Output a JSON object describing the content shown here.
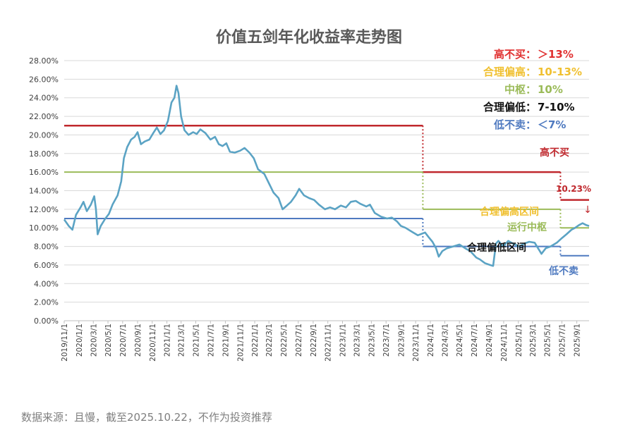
{
  "chart_data": {
    "type": "line",
    "title": "价值五剑年化收益率走势图",
    "ylim": [
      0,
      28
    ],
    "yticks": [
      "0.00%",
      "2.00%",
      "4.00%",
      "6.00%",
      "8.00%",
      "10.00%",
      "12.00%",
      "14.00%",
      "16.00%",
      "18.00%",
      "20.00%",
      "22.00%",
      "24.00%",
      "26.00%",
      "28.00%"
    ],
    "x_range": [
      "2019-11-01",
      "2025-10-22"
    ],
    "xticks": [
      "2019/11/1",
      "2020/1/1",
      "2020/3/1",
      "2020/5/1",
      "2020/7/1",
      "2020/9/1",
      "2020/11/1",
      "2021/1/1",
      "2021/3/1",
      "2021/5/1",
      "2021/7/1",
      "2021/9/1",
      "2021/11/1",
      "2022/1/1",
      "2022/3/1",
      "2022/5/1",
      "2022/7/1",
      "2022/9/1",
      "2022/11/1",
      "2023/1/1",
      "2023/3/1",
      "2023/5/1",
      "2023/7/1",
      "2023/9/1",
      "2023/11/1",
      "2024/1/1",
      "2024/3/1",
      "2024/5/1",
      "2024/7/1",
      "2024/9/1",
      "2024/11/1",
      "2025/1/1",
      "2025/3/1",
      "2025/5/1",
      "2025/7/1",
      "2025/9/1"
    ],
    "series": [
      {
        "color": "#5ba3c4",
        "points": [
          [
            "2019-11-01",
            10.9
          ],
          [
            "2019-11-20",
            10.2
          ],
          [
            "2019-12-05",
            9.8
          ],
          [
            "2019-12-20",
            11.4
          ],
          [
            "2020-01-10",
            12.3
          ],
          [
            "2020-01-20",
            12.8
          ],
          [
            "2020-02-03",
            11.8
          ],
          [
            "2020-02-20",
            12.5
          ],
          [
            "2020-03-05",
            13.4
          ],
          [
            "2020-03-12",
            12.0
          ],
          [
            "2020-03-19",
            9.3
          ],
          [
            "2020-04-01",
            10.2
          ],
          [
            "2020-04-20",
            11.0
          ],
          [
            "2020-05-05",
            11.5
          ],
          [
            "2020-05-20",
            12.5
          ],
          [
            "2020-06-10",
            13.5
          ],
          [
            "2020-06-25",
            15.0
          ],
          [
            "2020-07-06",
            17.5
          ],
          [
            "2020-07-20",
            18.7
          ],
          [
            "2020-08-05",
            19.5
          ],
          [
            "2020-08-20",
            19.8
          ],
          [
            "2020-09-01",
            20.3
          ],
          [
            "2020-09-15",
            19.0
          ],
          [
            "2020-10-01",
            19.3
          ],
          [
            "2020-10-20",
            19.5
          ],
          [
            "2020-11-05",
            20.2
          ],
          [
            "2020-11-20",
            20.8
          ],
          [
            "2020-12-05",
            20.1
          ],
          [
            "2020-12-20",
            20.5
          ],
          [
            "2021-01-05",
            21.5
          ],
          [
            "2021-01-20",
            23.5
          ],
          [
            "2021-02-01",
            24.0
          ],
          [
            "2021-02-10",
            25.3
          ],
          [
            "2021-02-18",
            24.5
          ],
          [
            "2021-03-01",
            22.0
          ],
          [
            "2021-03-15",
            20.5
          ],
          [
            "2021-04-01",
            20.0
          ],
          [
            "2021-04-20",
            20.3
          ],
          [
            "2021-05-05",
            20.1
          ],
          [
            "2021-05-20",
            20.6
          ],
          [
            "2021-06-10",
            20.2
          ],
          [
            "2021-07-01",
            19.5
          ],
          [
            "2021-07-20",
            19.8
          ],
          [
            "2021-08-05",
            19.0
          ],
          [
            "2021-08-20",
            18.8
          ],
          [
            "2021-09-05",
            19.1
          ],
          [
            "2021-09-20",
            18.2
          ],
          [
            "2021-10-10",
            18.1
          ],
          [
            "2021-11-01",
            18.3
          ],
          [
            "2021-11-20",
            18.6
          ],
          [
            "2021-12-10",
            18.1
          ],
          [
            "2021-12-28",
            17.5
          ],
          [
            "2022-01-15",
            16.3
          ],
          [
            "2022-02-10",
            15.8
          ],
          [
            "2022-03-01",
            14.8
          ],
          [
            "2022-03-20",
            13.8
          ],
          [
            "2022-04-10",
            13.2
          ],
          [
            "2022-04-27",
            12.0
          ],
          [
            "2022-05-15",
            12.4
          ],
          [
            "2022-06-01",
            12.8
          ],
          [
            "2022-06-20",
            13.5
          ],
          [
            "2022-07-05",
            14.2
          ],
          [
            "2022-07-25",
            13.5
          ],
          [
            "2022-08-15",
            13.2
          ],
          [
            "2022-09-05",
            13.0
          ],
          [
            "2022-09-25",
            12.5
          ],
          [
            "2022-10-20",
            12.0
          ],
          [
            "2022-11-10",
            12.2
          ],
          [
            "2022-12-01",
            12.0
          ],
          [
            "2022-12-25",
            12.4
          ],
          [
            "2023-01-15",
            12.2
          ],
          [
            "2023-02-05",
            12.8
          ],
          [
            "2023-02-25",
            12.9
          ],
          [
            "2023-03-15",
            12.6
          ],
          [
            "2023-04-10",
            12.3
          ],
          [
            "2023-04-25",
            12.5
          ],
          [
            "2023-05-15",
            11.6
          ],
          [
            "2023-06-10",
            11.2
          ],
          [
            "2023-07-05",
            11.0
          ],
          [
            "2023-07-25",
            11.1
          ],
          [
            "2023-08-15",
            10.7
          ],
          [
            "2023-09-01",
            10.2
          ],
          [
            "2023-09-20",
            10.0
          ],
          [
            "2023-10-15",
            9.6
          ],
          [
            "2023-11-10",
            9.2
          ],
          [
            "2023-12-10",
            9.5
          ],
          [
            "2023-12-25",
            9.0
          ],
          [
            "2024-01-10",
            8.5
          ],
          [
            "2024-01-25",
            7.8
          ],
          [
            "2024-02-05",
            6.9
          ],
          [
            "2024-02-20",
            7.5
          ],
          [
            "2024-03-10",
            7.8
          ],
          [
            "2024-04-05",
            8.0
          ],
          [
            "2024-05-01",
            8.2
          ],
          [
            "2024-05-25",
            7.8
          ],
          [
            "2024-06-15",
            7.5
          ],
          [
            "2024-07-10",
            6.8
          ],
          [
            "2024-07-25",
            6.6
          ],
          [
            "2024-08-15",
            6.2
          ],
          [
            "2024-09-05",
            6.0
          ],
          [
            "2024-09-18",
            5.9
          ],
          [
            "2024-09-30",
            8.3
          ],
          [
            "2024-10-10",
            8.6
          ],
          [
            "2024-10-30",
            8.0
          ],
          [
            "2024-11-20",
            8.6
          ],
          [
            "2024-12-10",
            8.3
          ],
          [
            "2025-01-05",
            8.0
          ],
          [
            "2025-01-25",
            8.3
          ],
          [
            "2025-02-15",
            8.5
          ],
          [
            "2025-03-10",
            8.4
          ],
          [
            "2025-04-07",
            7.2
          ],
          [
            "2025-04-25",
            7.8
          ],
          [
            "2025-05-15",
            8.0
          ],
          [
            "2025-06-10",
            8.4
          ],
          [
            "2025-07-01",
            8.9
          ],
          [
            "2025-07-20",
            9.3
          ],
          [
            "2025-08-10",
            9.8
          ],
          [
            "2025-08-25",
            10.0
          ],
          [
            "2025-09-10",
            10.3
          ],
          [
            "2025-09-25",
            10.5
          ],
          [
            "2025-10-10",
            10.3
          ],
          [
            "2025-10-22",
            10.2
          ]
        ]
      }
    ],
    "bands": [
      {
        "name": "高不买",
        "color": "#c0282d",
        "segments": [
          [
            "2019-11-01",
            "2023-12-01",
            21
          ],
          [
            "2023-12-01",
            "2025-06-25",
            16
          ],
          [
            "2025-06-25",
            "2025-10-22",
            13
          ]
        ]
      },
      {
        "name": "合理偏高",
        "color": "#9bbb59",
        "segments": [
          [
            "2019-11-01",
            "2023-12-01",
            16
          ],
          [
            "2023-12-01",
            "2025-06-25",
            12
          ],
          [
            "2025-06-25",
            "2025-10-22",
            10
          ]
        ]
      },
      {
        "name": "合理偏低",
        "color": "#4f7ac0",
        "segments": [
          [
            "2019-11-01",
            "2023-12-01",
            11
          ],
          [
            "2023-12-01",
            "2025-06-25",
            8
          ],
          [
            "2025-06-25",
            "2025-10-22",
            7
          ]
        ]
      }
    ],
    "legend": [
      {
        "label": "高不买：",
        "value": "＞13%",
        "color": "#e03030"
      },
      {
        "label": "合理偏高：",
        "value": "10-13%",
        "color": "#f0c030"
      },
      {
        "label": "中枢：",
        "value": "10%",
        "color": "#9bbb59"
      },
      {
        "label": "合理偏低：",
        "value": "7-10%",
        "color": "#111111"
      },
      {
        "label": "低不卖：",
        "value": "＜7%",
        "color": "#4f7ac0"
      }
    ],
    "annotations": {
      "high_no_buy": "高不买",
      "current_value": "10.23%",
      "arrow": "↓",
      "reasonable_high_zone": "合理偏高区间",
      "running_center": "运行中枢",
      "reasonable_low_zone": "合理偏低区间",
      "low_no_sell": "低不卖"
    },
    "source_note": "数据来源：且慢，截至2025.10.22，不作为投资推荐"
  }
}
